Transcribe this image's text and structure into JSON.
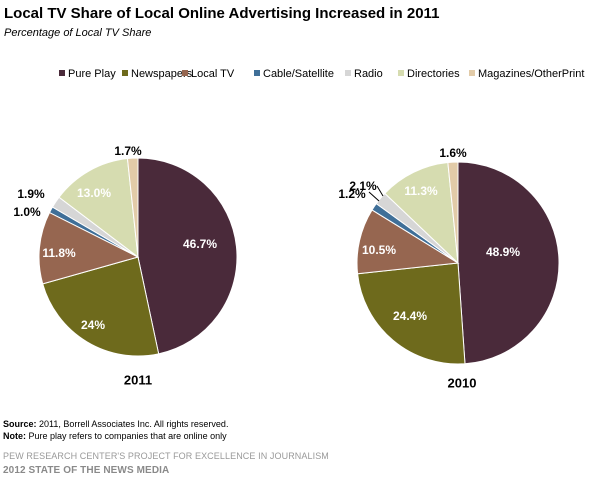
{
  "title": "Local TV Share of Local Online Advertising Increased in 2011",
  "subtitle": "Percentage of Local TV Share",
  "colors": {
    "Pure Play": "#4a2a3a",
    "Newspapers": "#6e6a1c",
    "Local TV": "#966650",
    "Cable/Satellite": "#3f6f98",
    "Radio": "#d6d6d6",
    "Directories": "#d6dcb0",
    "Magazines/OtherPrint": "#e2cba8"
  },
  "chart_data": [
    {
      "type": "pie",
      "year_label": "2011",
      "categories": [
        "Pure Play",
        "Newspapers",
        "Local TV",
        "Cable/Satellite",
        "Radio",
        "Directories",
        "Magazines/OtherPrint"
      ],
      "values": [
        46.7,
        24,
        11.8,
        1.0,
        1.9,
        13.0,
        1.7
      ],
      "labels": [
        "46.7%",
        "24%",
        "11.8%",
        "1.0%",
        "1.9%",
        "13.0%",
        "1.7%"
      ],
      "legend_position": "top"
    },
    {
      "type": "pie",
      "year_label": "2010",
      "categories": [
        "Pure Play",
        "Newspapers",
        "Local TV",
        "Cable/Satellite",
        "Radio",
        "Directories",
        "Magazines/OtherPrint"
      ],
      "values": [
        48.9,
        24.4,
        10.5,
        1.2,
        2.1,
        11.3,
        1.6
      ],
      "labels": [
        "48.9%",
        "24.4%",
        "10.5%",
        "1.2%",
        "2.1%",
        "11.3%",
        "1.6%"
      ],
      "legend_position": "top"
    }
  ],
  "notes": {
    "source_label": "Source:",
    "source_text": " 2011, Borrell Associates Inc. All rights reserved.",
    "note_label": "Note:",
    "note_text": " Pure play refers to companies that are online only"
  },
  "footer": {
    "line1": "PEW RESEARCH CENTER'S PROJECT FOR EXCELLENCE IN JOURNALISM",
    "line2": "2012 STATE OF THE NEWS MEDIA"
  }
}
